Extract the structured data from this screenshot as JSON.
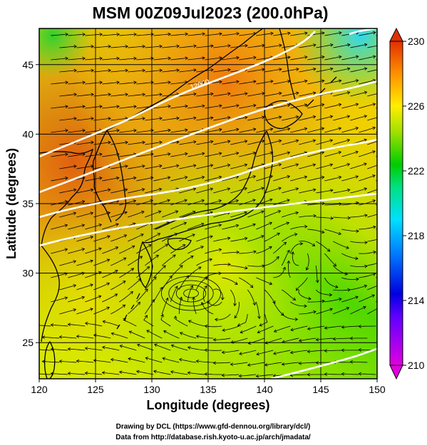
{
  "title": "MSM 00Z09Jul2023 (200.0hPa)",
  "map": {
    "xlabel": "Longitude (degrees)",
    "ylabel": "Latitude  (degrees)",
    "xlim": [
      120,
      150
    ],
    "ylim": [
      22.4,
      47.6
    ],
    "xticks": [
      {
        "value": 120,
        "label": "120"
      },
      {
        "value": 125,
        "label": "125"
      },
      {
        "value": 130,
        "label": "130"
      },
      {
        "value": 135,
        "label": "135"
      },
      {
        "value": 140,
        "label": "140"
      },
      {
        "value": 145,
        "label": "145"
      },
      {
        "value": 150,
        "label": "150"
      }
    ],
    "yticks": [
      {
        "value": 25,
        "label": "25"
      },
      {
        "value": 30,
        "label": "30"
      },
      {
        "value": 35,
        "label": "35"
      },
      {
        "value": 40,
        "label": "40"
      },
      {
        "value": 45,
        "label": "45"
      }
    ],
    "grid": true,
    "contour_label": "12000"
  },
  "colorbar": {
    "min": 210,
    "max": 230,
    "ticks": [
      {
        "value": 210,
        "label": "210"
      },
      {
        "value": 214,
        "label": "214"
      },
      {
        "value": 218,
        "label": "218"
      },
      {
        "value": 222,
        "label": "222"
      },
      {
        "value": 226,
        "label": "226"
      },
      {
        "value": 230,
        "label": "230"
      }
    ],
    "colors": [
      "#ff00ff",
      "#0000ff",
      "#00ffff",
      "#00dd00",
      "#ffff00",
      "#ff0000"
    ]
  },
  "credits": [
    "Drawing by DCL (https://www.gfd-dennou.org/library/dcl/)",
    "Data from http://database.rish.kyoto-u.ac.jp/arch/jmadata/"
  ]
}
